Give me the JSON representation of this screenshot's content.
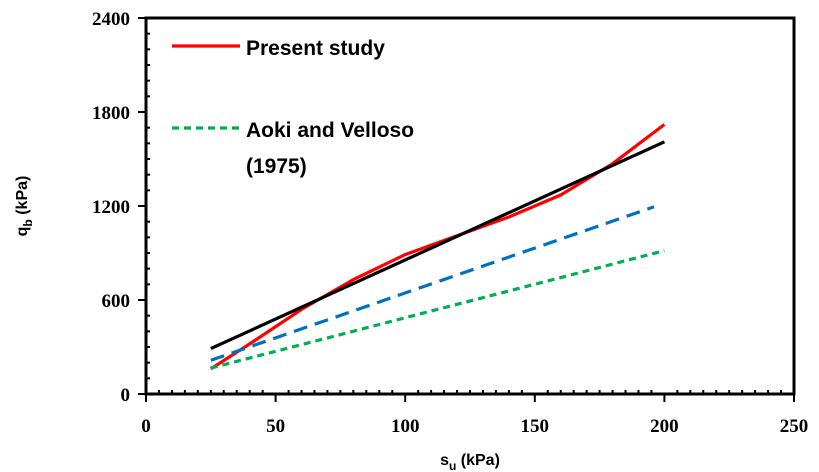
{
  "chart_data": {
    "type": "line",
    "xlabel": {
      "main": "s",
      "sub": "u",
      "unit": " (kPa)"
    },
    "ylabel": {
      "main": "q",
      "sub": "b",
      "unit": " (kPa)"
    },
    "xlim": [
      0,
      250
    ],
    "ylim": [
      0,
      2400
    ],
    "x_ticks": [
      "0",
      "50",
      "100",
      "150",
      "200",
      "250"
    ],
    "y_ticks": [
      "0",
      "600",
      "1200",
      "1800",
      "2400"
    ],
    "grid": false,
    "legend_position": "top-left",
    "series": [
      {
        "name": "Present study",
        "color": "#ff0000",
        "dash": "solid",
        "x": [
          25,
          40,
          60,
          80,
          100,
          120,
          140,
          160,
          180,
          200
        ],
        "y": [
          160,
          320,
          540,
          730,
          890,
          1010,
          1130,
          1270,
          1470,
          1720
        ]
      },
      {
        "name": "Aoki and Velloso (1975)",
        "legend_lines": [
          "Aoki and Velloso",
          "(1975)"
        ],
        "color": "#00b050",
        "dash": "dotted",
        "x": [
          25,
          200
        ],
        "y": [
          165,
          915
        ]
      },
      {
        "name": "",
        "color": "#000000",
        "dash": "solid",
        "x": [
          25,
          200
        ],
        "y": [
          290,
          1610
        ]
      },
      {
        "name": "",
        "color": "#0070c0",
        "dash": "dashed",
        "x": [
          25,
          196
        ],
        "y": [
          215,
          1195
        ]
      }
    ]
  }
}
